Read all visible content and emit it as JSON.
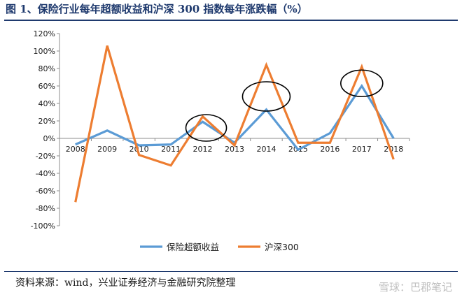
{
  "header": {
    "title": "图 1、保险行业每年超额收益和沪深 300 指数每年涨跌幅（%）"
  },
  "footer": {
    "source": "资料来源：wind，兴业证券经济与金融研究院整理",
    "watermark": "雪球：巴郡笔记"
  },
  "chart_data": {
    "type": "line",
    "title": "",
    "xlabel": "",
    "ylabel": "",
    "x": [
      "2008",
      "2009",
      "2010",
      "2011",
      "2012",
      "2013",
      "2014",
      "2015",
      "2016",
      "2017",
      "2018"
    ],
    "y_ticks": [
      "-100%",
      "-80%",
      "-60%",
      "-40%",
      "-20%",
      "0%",
      "20%",
      "40%",
      "60%",
      "80%",
      "100%",
      "120%"
    ],
    "ylim": [
      -100,
      120
    ],
    "grid": false,
    "legend_position": "bottom",
    "series": [
      {
        "name": "保险超额收益",
        "color": "#5b9bd5",
        "values": [
          -7,
          9,
          -8,
          -7,
          19,
          -5,
          33,
          -13,
          6,
          60,
          0
        ]
      },
      {
        "name": "沪深300",
        "color": "#ed7d31",
        "values": [
          -73,
          106,
          -19,
          -31,
          25,
          -8,
          84,
          -5,
          -5,
          82,
          -24
        ]
      }
    ],
    "annotations": [
      {
        "shape": "ellipse",
        "around_year": "2012"
      },
      {
        "shape": "ellipse",
        "around_year": "2014"
      },
      {
        "shape": "ellipse",
        "around_year": "2017"
      }
    ]
  }
}
